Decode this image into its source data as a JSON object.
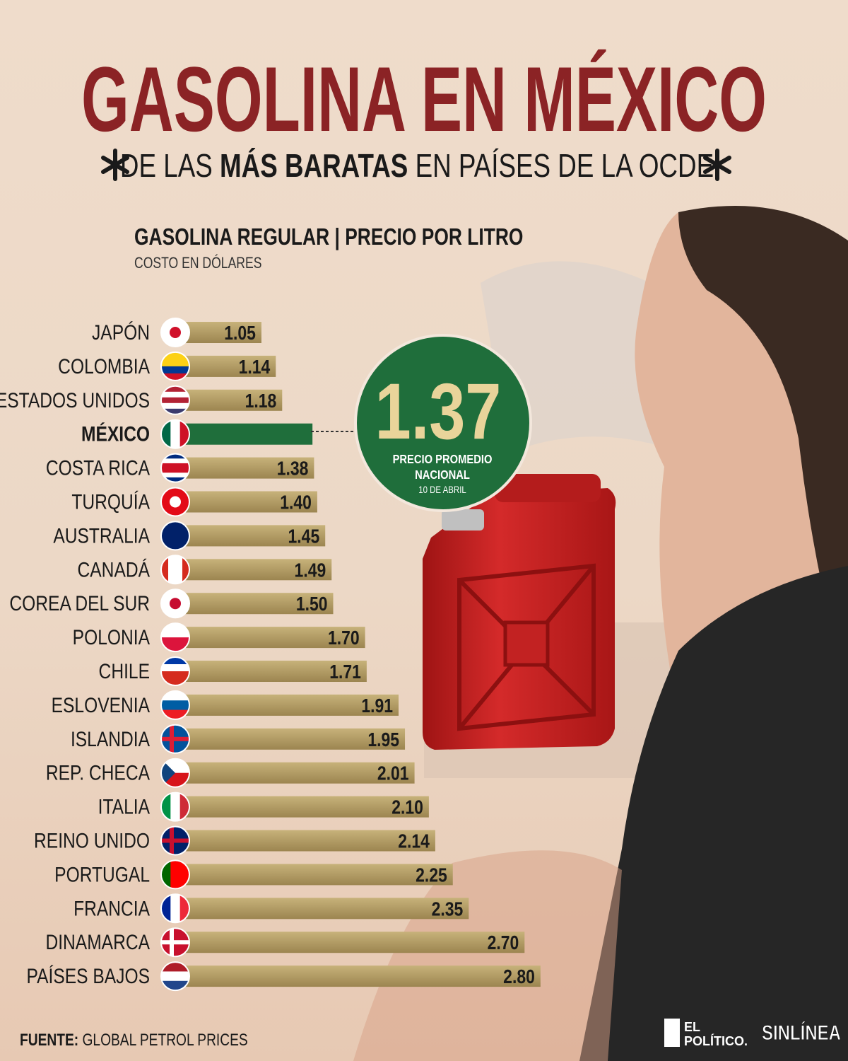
{
  "chart_data": {
    "type": "bar",
    "orientation": "horizontal",
    "title": "GASOLINA EN MÉXICO",
    "subtitle_parts": [
      "DE LAS",
      "MÁS BARATAS",
      "EN PAÍSES DE LA OCDE"
    ],
    "chart_title": "GASOLINA REGULAR | PRECIO POR LITRO",
    "chart_subtitle": "COSTO EN DÓLARES",
    "categories": [
      "JAPÓN",
      "COLOMBIA",
      "ESTADOS UNIDOS",
      "MÉXICO",
      "COSTA RICA",
      "TURQUÍA",
      "AUSTRALIA",
      "CANADÁ",
      "COREA DEL SUR",
      "POLONIA",
      "CHILE",
      "ESLOVENIA",
      "ISLANDIA",
      "REP. CHECA",
      "ITALIA",
      "REINO UNIDO",
      "PORTUGAL",
      "FRANCIA",
      "DINAMARCA",
      "PAÍSES BAJOS"
    ],
    "values": [
      1.05,
      1.14,
      1.18,
      1.37,
      1.38,
      1.4,
      1.45,
      1.49,
      1.5,
      1.7,
      1.71,
      1.91,
      1.95,
      2.01,
      2.1,
      2.14,
      2.25,
      2.35,
      2.7,
      2.8
    ],
    "value_labels": [
      "1.05",
      "1.14",
      "1.18",
      "1.37",
      "1.38",
      "1.40",
      "1.45",
      "1.49",
      "1.50",
      "1.70",
      "1.71",
      "1.91",
      "1.95",
      "2.01",
      "2.10",
      "2.14",
      "2.25",
      "2.35",
      "2.70",
      "2.80"
    ],
    "colors": [
      "#b09a5e",
      "#b09a5e",
      "#b09a5e",
      "#1f6e3b",
      "#b09a5e",
      "#b09a5e",
      "#b09a5e",
      "#b09a5e",
      "#b09a5e",
      "#b09a5e",
      "#b09a5e",
      "#b09a5e",
      "#b09a5e",
      "#b09a5e",
      "#b09a5e",
      "#b09a5e",
      "#b09a5e",
      "#b09a5e",
      "#b09a5e",
      "#b09a5e"
    ],
    "xlim": [
      0,
      3
    ],
    "callout": {
      "label_lines": [
        "PRECIO PROMEDIO",
        "NACIONAL"
      ],
      "date": "10 DE ABRIL"
    },
    "source_label": "FUENTE:",
    "source": "GLOBAL PETROL PRICES",
    "logos": [
      "EL",
      "POLÍTICO.",
      "SINLÍNEA"
    ]
  }
}
